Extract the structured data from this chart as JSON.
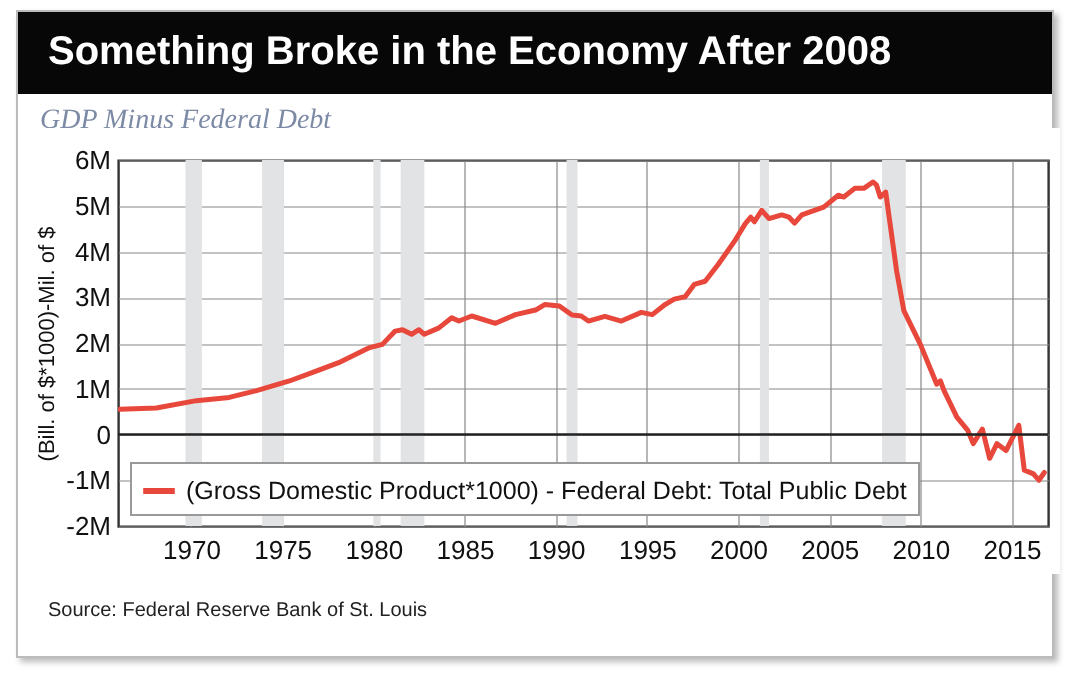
{
  "chart_data": {
    "type": "line",
    "title": "Something Broke in the Economy After 2008",
    "subtitle": "GDP Minus Federal Debt",
    "ylabel": "(Bill. of $*1000)-Mil. of $",
    "annotations": [
      "Source: Federal Reserve Bank of St. Louis"
    ],
    "x": [
      1966.1,
      1968.1,
      1970.3,
      1972.1,
      1973.6,
      1975.4,
      1976.9,
      1978.1,
      1979.8,
      1980.5,
      1981.2,
      1981.6,
      1982.1,
      1982.5,
      1982.8,
      1983.6,
      1984.3,
      1984.7,
      1985.4,
      1986.7,
      1987.8,
      1988.9,
      1989.4,
      1990.2,
      1990.9,
      1991.4,
      1991.8,
      1992.7,
      1993.6,
      1994.7,
      1995.3,
      1996.0,
      1996.5,
      1997.1,
      1997.6,
      1998.2,
      1998.9,
      1999.8,
      2000.4,
      2000.7,
      2000.9,
      2001.3,
      2001.7,
      2002.4,
      2002.8,
      2003.1,
      2003.5,
      2004.0,
      2004.7,
      2005.5,
      2005.8,
      2006.4,
      2006.9,
      2007.4,
      2007.6,
      2007.8,
      2008.1,
      2008.3,
      2008.7,
      2009.1,
      2010.0,
      2010.9,
      2011.1,
      2011.3,
      2012.0,
      2012.6,
      2012.9,
      2013.4,
      2013.8,
      2014.2,
      2014.7,
      2015.4,
      2015.7,
      2016.2,
      2016.5,
      2016.8
    ],
    "series": [
      {
        "name": "(Gross Domestic Product*1000) - Federal Debt: Total Public Debt",
        "color": "#e8483b",
        "values": [
          0.55,
          0.58,
          0.74,
          0.81,
          0.96,
          1.17,
          1.39,
          1.57,
          1.9,
          1.97,
          2.26,
          2.29,
          2.19,
          2.29,
          2.19,
          2.33,
          2.55,
          2.48,
          2.59,
          2.43,
          2.62,
          2.72,
          2.84,
          2.81,
          2.61,
          2.59,
          2.48,
          2.58,
          2.48,
          2.67,
          2.62,
          2.84,
          2.96,
          3.01,
          3.28,
          3.35,
          3.71,
          4.22,
          4.61,
          4.75,
          4.65,
          4.9,
          4.72,
          4.8,
          4.75,
          4.62,
          4.8,
          4.87,
          4.97,
          5.23,
          5.19,
          5.38,
          5.38,
          5.52,
          5.45,
          5.19,
          5.3,
          4.72,
          3.57,
          2.7,
          1.97,
          1.1,
          1.17,
          0.96,
          0.38,
          0.09,
          -0.2,
          0.12,
          -0.52,
          -0.2,
          -0.35,
          0.2,
          -0.78,
          -0.86,
          -1.0,
          -0.83
        ]
      }
    ],
    "xlim": [
      1966,
      2017
    ],
    "xticks": [
      1970,
      1975,
      1980,
      1985,
      1990,
      1995,
      2000,
      2005,
      2010,
      2015
    ],
    "ylim": [
      -2,
      6
    ],
    "yticks": [
      {
        "value": -2,
        "label": "-2M"
      },
      {
        "value": -1,
        "label": "-1M"
      },
      0,
      {
        "value": 1,
        "label": "1M"
      },
      {
        "value": 2,
        "label": "2M"
      },
      {
        "value": 3,
        "label": "3M"
      },
      {
        "value": 4,
        "label": "4M"
      },
      {
        "value": 5,
        "label": "5M"
      },
      {
        "value": 6,
        "label": "6M"
      }
    ],
    "grid": true,
    "legend": "bottom left",
    "line_style": "solid",
    "ref_lines": [
      {
        "axis": "y",
        "value": 0,
        "color": "#222222"
      }
    ],
    "bands": [
      {
        "axis": "x",
        "from": 1969.7,
        "to": 1970.6,
        "color": "#e2e3e5"
      },
      {
        "axis": "x",
        "from": 1973.9,
        "to": 1975.1,
        "color": "#e2e3e5"
      },
      {
        "axis": "x",
        "from": 1980.0,
        "to": 1980.4,
        "color": "#e2e3e5"
      },
      {
        "axis": "x",
        "from": 1981.5,
        "to": 1982.8,
        "color": "#e2e3e5"
      },
      {
        "axis": "x",
        "from": 1990.6,
        "to": 1991.2,
        "color": "#e2e3e5"
      },
      {
        "axis": "x",
        "from": 2001.2,
        "to": 2001.7,
        "color": "#e2e3e5"
      },
      {
        "axis": "x",
        "from": 2007.9,
        "to": 2009.2,
        "color": "#e2e3e5"
      }
    ]
  }
}
